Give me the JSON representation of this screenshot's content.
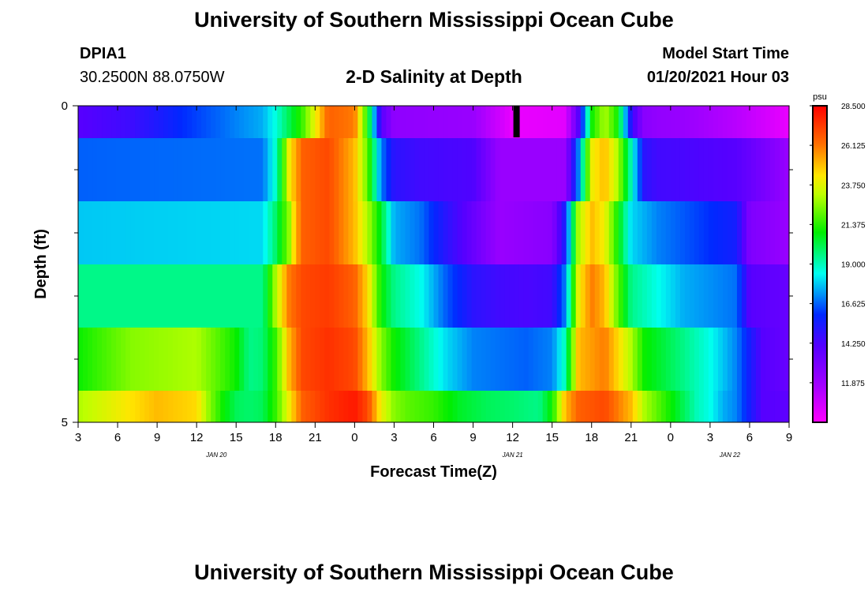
{
  "header": {
    "title": "University of Southern Mississippi Ocean Cube",
    "station_id": "DPIA1",
    "station_coords": "30.2500N 88.0750W",
    "plot_title": "2-D Salinity at Depth",
    "model_start_label": "Model Start Time",
    "model_start_value": "01/20/2021 Hour 03"
  },
  "footer": {
    "title": "University of Southern Mississippi Ocean Cube"
  },
  "chart_data": {
    "type": "heatmap",
    "title": "2-D Salinity at Depth",
    "xlabel": "Forecast Time(Z)",
    "ylabel": "Depth (ft)",
    "x_ticks": [
      "3",
      "6",
      "9",
      "12",
      "15",
      "18",
      "21",
      "0",
      "3",
      "6",
      "9",
      "12",
      "15",
      "18",
      "21",
      "0",
      "3",
      "6",
      "9"
    ],
    "x_hours": [
      0,
      3,
      6,
      9,
      12,
      15,
      18,
      21,
      24,
      27,
      30,
      33,
      36,
      39,
      42,
      45,
      48,
      51,
      54
    ],
    "date_labels": [
      {
        "text": "JAN 20",
        "hour": 10.5
      },
      {
        "text": "JAN 21",
        "hour": 33
      },
      {
        "text": "JAN 22",
        "hour": 49.5
      }
    ],
    "y_ticks": [
      "0",
      "5"
    ],
    "ylim": [
      0,
      5
    ],
    "colorbar": {
      "unit": "psu",
      "range": [
        9.5,
        28.5
      ],
      "ticks": [
        "28.500",
        "26.125",
        "23.750",
        "21.375",
        "19.000",
        "16.625",
        "14.250",
        "11.875"
      ]
    },
    "time_marker_hour": 33.3,
    "depth_rows": [
      {
        "hours": [
          0,
          4,
          8,
          14,
          15,
          17,
          19,
          21,
          22,
          23,
          24,
          30,
          33,
          37,
          38,
          39,
          40,
          41,
          42,
          42.5,
          43,
          44,
          46,
          50,
          54
        ],
        "values": [
          14.0,
          14.6,
          16.0,
          17.5,
          18.6,
          21.5,
          26.5,
          26.0,
          21.0,
          14.0,
          12.3,
          12.0,
          10.0,
          10.2,
          14.0,
          21.0,
          23.0,
          21.0,
          15.0,
          13.5,
          12.5,
          12.2,
          12.0,
          11.2,
          10.0
        ]
      },
      {
        "hours": [
          0,
          14,
          15,
          15.5,
          16,
          17,
          19,
          21,
          22,
          23,
          24,
          26,
          30,
          32,
          37,
          38,
          39,
          40,
          41,
          42,
          43,
          44,
          50,
          54
        ],
        "values": [
          16.6,
          16.8,
          18.8,
          21.0,
          24.0,
          26.5,
          27.0,
          25.0,
          22.0,
          17.0,
          15.0,
          14.5,
          14.2,
          12.0,
          12.0,
          17.0,
          24.0,
          25.0,
          23.0,
          19.0,
          15.0,
          14.5,
          14.0,
          12.0
        ]
      },
      {
        "hours": [
          0,
          14,
          15,
          16,
          16.5,
          17,
          19,
          21,
          22,
          23,
          24,
          26,
          28,
          32,
          36,
          37,
          38,
          39,
          40,
          41,
          42,
          44,
          46,
          50,
          51,
          54
        ],
        "values": [
          17.8,
          18.0,
          19.8,
          22.5,
          25.0,
          26.5,
          27.0,
          25.0,
          23.0,
          20.5,
          17.5,
          16.8,
          15.0,
          12.0,
          12.5,
          15.5,
          23.0,
          25.0,
          24.0,
          21.0,
          18.0,
          17.0,
          16.5,
          15.5,
          12.8,
          12.0
        ]
      },
      {
        "hours": [
          0,
          14,
          14.5,
          15,
          16,
          17,
          19,
          21,
          22,
          23,
          24,
          26,
          28,
          30,
          32,
          34,
          36,
          37,
          38,
          39,
          40,
          41,
          42,
          44,
          46,
          50,
          51,
          54
        ],
        "values": [
          19.5,
          19.5,
          21.0,
          23.0,
          26.0,
          27.0,
          27.3,
          26.5,
          24.5,
          21.0,
          19.5,
          18.5,
          16.5,
          15.0,
          14.5,
          14.3,
          14.5,
          17.0,
          24.0,
          26.0,
          25.0,
          22.0,
          19.5,
          18.5,
          17.5,
          16.8,
          14.0,
          13.5
        ]
      },
      {
        "hours": [
          0,
          4,
          9,
          12,
          13,
          14,
          15,
          16,
          17,
          19,
          21,
          22,
          23,
          24,
          26,
          28,
          30,
          32,
          34,
          36,
          37,
          38,
          40,
          41,
          42,
          43,
          44,
          46,
          48,
          50,
          51,
          52,
          54
        ],
        "values": [
          21.0,
          22.5,
          23.0,
          21.0,
          19.5,
          19.7,
          21.5,
          25.0,
          27.0,
          27.5,
          27.0,
          25.0,
          22.5,
          21.0,
          19.5,
          18.0,
          17.0,
          16.8,
          16.6,
          17.0,
          19.0,
          25.0,
          26.0,
          24.5,
          23.0,
          21.0,
          20.5,
          19.5,
          18.5,
          17.0,
          15.5,
          14.0,
          13.5
        ]
      },
      {
        "hours": [
          0,
          3,
          6,
          9,
          10,
          11,
          12,
          13,
          14,
          15,
          16,
          17,
          19,
          21,
          22,
          23,
          24,
          25,
          27,
          29,
          31,
          33,
          35,
          36,
          37,
          38,
          40,
          41,
          42,
          43,
          44,
          46,
          47,
          48,
          49,
          50,
          51,
          52,
          54
        ],
        "values": [
          23.0,
          24.0,
          25.0,
          24.5,
          22.5,
          21.0,
          20.0,
          19.8,
          20.0,
          21.5,
          24.0,
          26.5,
          27.5,
          28.0,
          27.0,
          24.0,
          22.5,
          22.0,
          21.5,
          20.5,
          20.0,
          19.8,
          19.5,
          21.0,
          25.0,
          26.5,
          27.0,
          26.0,
          25.0,
          23.0,
          22.0,
          20.0,
          19.0,
          18.5,
          17.5,
          17.0,
          15.5,
          14.0,
          13.8
        ]
      }
    ]
  }
}
